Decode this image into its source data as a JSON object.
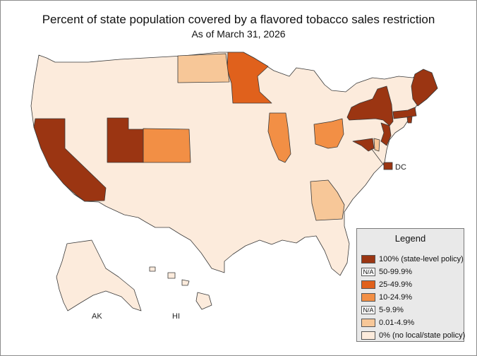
{
  "title": "Percent of state population covered by a flavored tobacco sales restriction",
  "subtitle": "As of March 31, 2026",
  "colors": {
    "full": "#9b3512",
    "c25_49": "#e0611c",
    "c10_24": "#f28f45",
    "c001_4": "#f7c798",
    "none": "#fcebdc"
  },
  "legend": {
    "title": "Legend",
    "na_text": "N/A",
    "items": [
      {
        "label": "100% (state-level policy)",
        "na": false,
        "color": "#9b3512"
      },
      {
        "label": "50-99.9%",
        "na": true,
        "color": ""
      },
      {
        "label": "25-49.9%",
        "na": false,
        "color": "#e0611c"
      },
      {
        "label": "10-24.9%",
        "na": false,
        "color": "#f28f45"
      },
      {
        "label": "5-9.9%",
        "na": true,
        "color": ""
      },
      {
        "label": "0.01-4.9%",
        "na": false,
        "color": "#f7c798"
      },
      {
        "label": "0% (no local/state policy)",
        "na": false,
        "color": "#fcebdc"
      }
    ]
  },
  "labels": {
    "dc": "DC",
    "ak": "AK",
    "hi": "HI"
  },
  "states": {
    "CA": "100% (state-level policy)",
    "UT": "100% (state-level policy)",
    "NY": "100% (state-level policy)",
    "ME": "100% (state-level policy)",
    "MA": "100% (state-level policy)",
    "RI": "100% (state-level policy)",
    "NJ": "100% (state-level policy)",
    "MD": "100% (state-level policy)",
    "DC": "100% (state-level policy)",
    "MN": "25-49.9%",
    "CO": "10-24.9%",
    "IL": "10-24.9%",
    "OH": "10-24.9%",
    "ND": "0.01-4.9%",
    "GA": "0.01-4.9%",
    "DE": "0.01-4.9%"
  }
}
